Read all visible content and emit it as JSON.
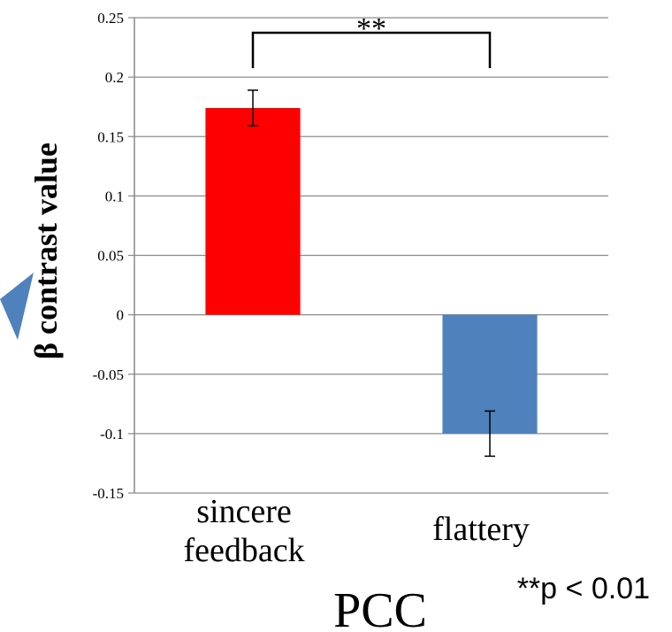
{
  "chart_data": {
    "type": "bar",
    "categories": [
      "sincere\nfeedback",
      "flattery"
    ],
    "values": [
      0.174,
      -0.1
    ],
    "error": [
      0.015,
      0.019
    ],
    "colors": [
      "#ff0000",
      "#4f81bd"
    ],
    "ylabel": "β contrast value",
    "ylim": [
      -0.15,
      0.25
    ],
    "yticks": [
      "0.25",
      "0.2",
      "0.15",
      "0.1",
      "0.05",
      "0",
      "-0.05",
      "-0.1",
      "-0.15"
    ],
    "grid": true,
    "significance": {
      "label": "**",
      "pair": [
        0,
        1
      ]
    },
    "note": "**p < 0.01",
    "region_label": "PCC"
  }
}
